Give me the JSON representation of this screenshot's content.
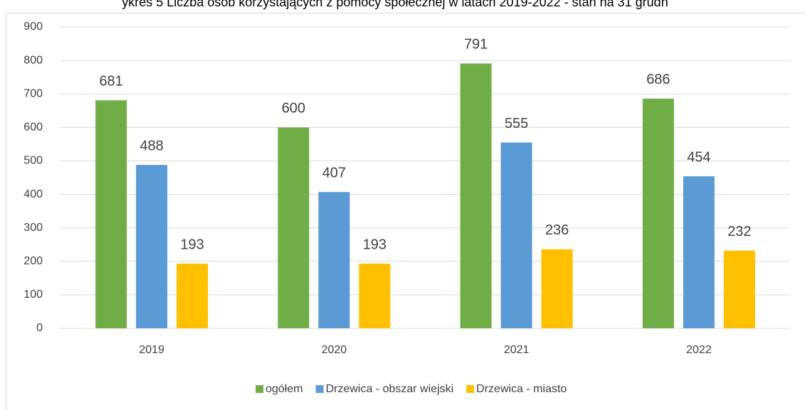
{
  "chart_data": {
    "type": "bar",
    "title": "ykres 5 Liczba osób korzystających z pomocy społecznej w latach 2019-2022 - stan na 31 grudn",
    "categories": [
      "2019",
      "2020",
      "2021",
      "2022"
    ],
    "series": [
      {
        "name": "ogółem",
        "color": "#70ad47",
        "values": [
          681,
          600,
          791,
          686
        ]
      },
      {
        "name": "Drzewica - obszar wiejski",
        "color": "#5b9bd5",
        "values": [
          488,
          407,
          555,
          454
        ]
      },
      {
        "name": "Drzewica - miasto",
        "color": "#ffc000",
        "values": [
          193,
          193,
          236,
          232
        ]
      }
    ],
    "ylim": [
      0,
      900
    ],
    "yticks": [
      0,
      100,
      200,
      300,
      400,
      500,
      600,
      700,
      800,
      900
    ],
    "grid": true,
    "legend": "bottom"
  }
}
